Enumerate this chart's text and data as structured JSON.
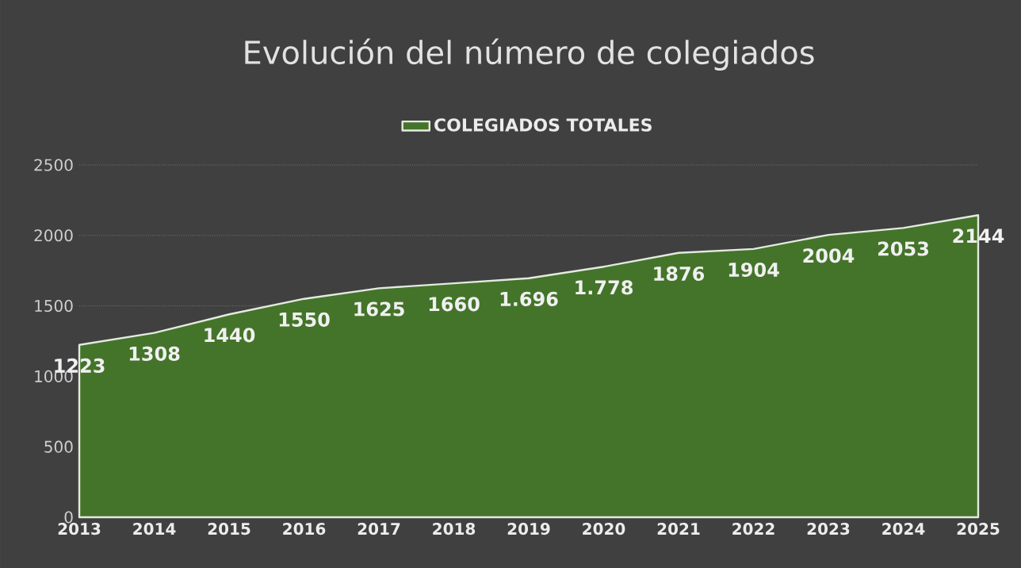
{
  "chart_data": {
    "type": "area",
    "title": "Evolución del número de colegiados",
    "categories": [
      "2013",
      "2014",
      "2015",
      "2016",
      "2017",
      "2018",
      "2019",
      "2020",
      "2021",
      "2022",
      "2023",
      "2024",
      "2025"
    ],
    "series": [
      {
        "name": "COLEGIADOS TOTALES",
        "color": "#44742a",
        "values": [
          1223,
          1308,
          1440,
          1550,
          1625,
          1660,
          1696,
          1778,
          1876,
          1904,
          2004,
          2053,
          2144
        ],
        "value_labels": [
          "1223",
          "1308",
          "1440",
          "1550",
          "1625",
          "1660",
          "1.696",
          "1.778",
          "1876",
          "1904",
          "2004",
          "2053",
          "2144"
        ]
      }
    ],
    "ylim": [
      0,
      2500
    ],
    "yticks": [
      0,
      500,
      1000,
      1500,
      2000,
      2500
    ],
    "grid": "y",
    "legend": "top"
  }
}
